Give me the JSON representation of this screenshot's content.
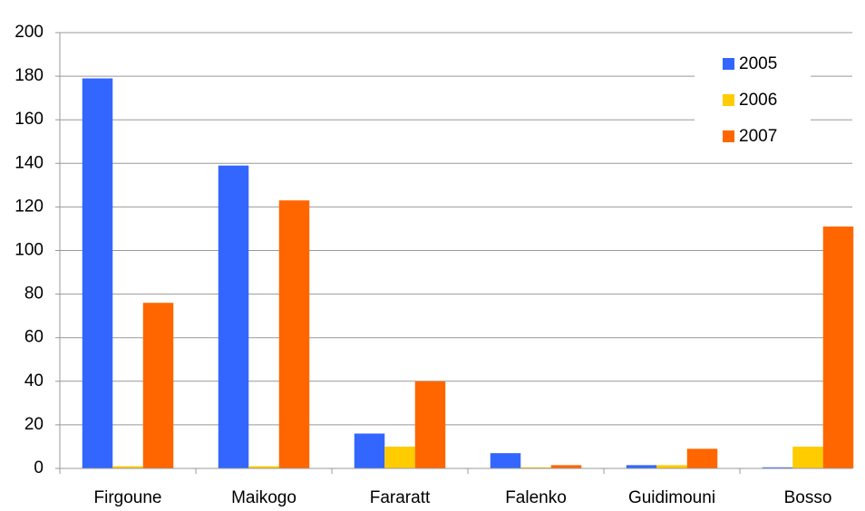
{
  "chart_data": {
    "type": "bar",
    "categories": [
      "Firgoune",
      "Maikogo",
      "Fararatt",
      "Falenko",
      "Guidimouni",
      "Bosso"
    ],
    "series": [
      {
        "name": "2005",
        "color": "#3366ff",
        "values": [
          179,
          139,
          16,
          7,
          1.5,
          0.5
        ]
      },
      {
        "name": "2006",
        "color": "#ffcc00",
        "values": [
          1,
          1,
          10,
          0.5,
          1.5,
          10
        ]
      },
      {
        "name": "2007",
        "color": "#ff6600",
        "values": [
          76,
          123,
          40,
          1.5,
          9,
          111
        ]
      }
    ],
    "ylim": [
      0,
      200
    ],
    "yticks": [
      0,
      20,
      40,
      60,
      80,
      100,
      120,
      140,
      160,
      180,
      200
    ],
    "grid": true,
    "legend": "upper right"
  }
}
